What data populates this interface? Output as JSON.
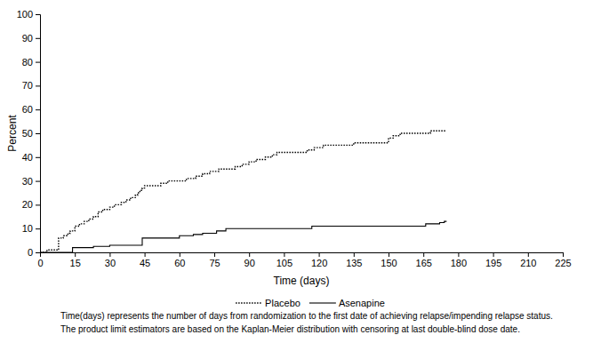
{
  "chart_data": {
    "type": "line",
    "x_label": "Time (days)",
    "y_label": "Percent",
    "annotations": [
      "Time(days) represents the number of days from randomization to the first date of achieving relapse/impending relapse status.",
      "The product limit estimators are based on the Kaplan-Meier distribution with censoring at last double-blind dose date."
    ],
    "xlim": [
      0,
      225
    ],
    "xticks": [
      0,
      15,
      30,
      45,
      60,
      75,
      90,
      105,
      120,
      135,
      150,
      165,
      180,
      195,
      210,
      225
    ],
    "ylim": [
      0,
      100
    ],
    "yticks": [
      0,
      10,
      20,
      30,
      40,
      50,
      60,
      70,
      80,
      90,
      100
    ],
    "legend": "bottom",
    "grid": false,
    "series": [
      {
        "name": "Placebo",
        "color": "#000000",
        "line_style": "dotted",
        "marker": "none",
        "x": [
          0,
          3,
          8,
          10,
          12,
          13,
          15,
          17,
          19,
          21,
          23,
          25,
          27,
          30,
          32,
          35,
          37,
          39,
          41,
          42,
          43,
          44,
          45,
          52,
          55,
          63,
          67,
          70,
          73,
          77,
          84,
          87,
          90,
          93,
          97,
          100,
          102,
          115,
          118,
          122,
          135,
          150,
          152,
          155,
          168,
          175
        ],
        "values": [
          0,
          1,
          6,
          7,
          8,
          9,
          11,
          12,
          13,
          14,
          15,
          17,
          18,
          19,
          20,
          21,
          22,
          23,
          24,
          25,
          26,
          27,
          28,
          29,
          30,
          31,
          32,
          33,
          34,
          35,
          36,
          37,
          38,
          39,
          40,
          41,
          42,
          43,
          44,
          45,
          46,
          48,
          49,
          50,
          51,
          51
        ]
      },
      {
        "name": "Asenapine",
        "color": "#000000",
        "line_style": "solid",
        "marker": "none",
        "x": [
          0,
          14,
          23,
          30,
          44,
          60,
          66,
          70,
          76,
          80,
          117,
          166,
          172,
          174,
          175
        ],
        "values": [
          0,
          2,
          2.5,
          3,
          6,
          7,
          7.5,
          8,
          9,
          10,
          11,
          12,
          12.5,
          13,
          13
        ]
      }
    ]
  }
}
